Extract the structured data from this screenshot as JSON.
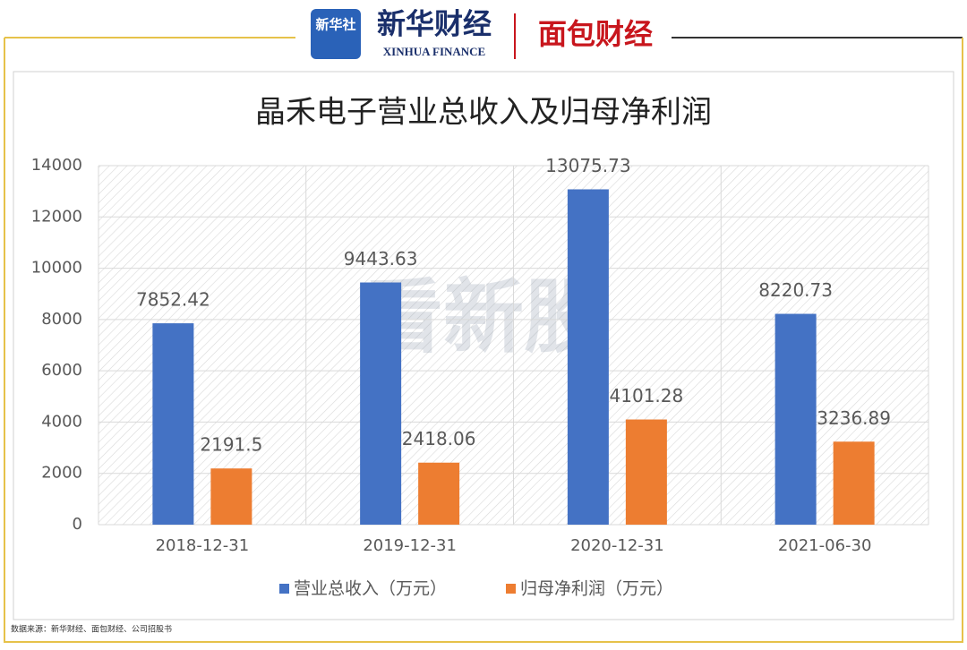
{
  "header": {
    "agency": "新华社",
    "brand": "新华财经",
    "brand_en": "XINHUA FINANCE",
    "partner": "面包财经"
  },
  "watermark": "看新股",
  "footer": "数据来源：新华财经、面包财经、公司招股书",
  "chart_data": {
    "type": "bar",
    "title": "晶禾电子营业总收入及归母净利润",
    "categories": [
      "2018-12-31",
      "2019-12-31",
      "2020-12-31",
      "2021-06-30"
    ],
    "series": [
      {
        "name": "营业总收入（万元）",
        "color": "#4472c4",
        "values": [
          7852.42,
          9443.63,
          13075.73,
          8220.73
        ]
      },
      {
        "name": "归母净利润（万元）",
        "color": "#ed7d31",
        "values": [
          2191.5,
          2418.06,
          4101.28,
          3236.89
        ]
      }
    ],
    "ylim": [
      0,
      14000
    ],
    "yticks": [
      0,
      2000,
      4000,
      6000,
      8000,
      10000,
      12000,
      14000
    ],
    "grid": true,
    "legend": "bottom"
  }
}
